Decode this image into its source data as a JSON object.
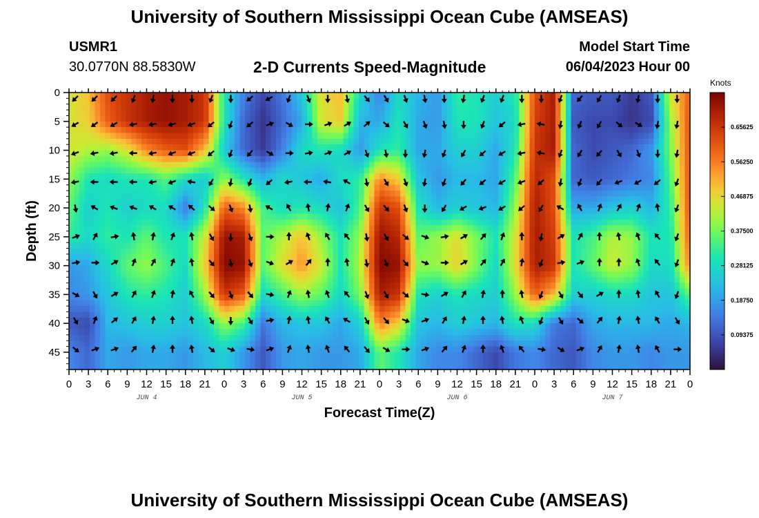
{
  "titles": {
    "main": "University of Southern Mississippi Ocean Cube (AMSEAS)",
    "footer": "University of Southern Mississippi Ocean Cube (AMSEAS)",
    "station_id": "USMR1",
    "station_coords": "30.0770N  88.5830W",
    "plot_title": "2-D Currents Speed-Magnitude",
    "model_start_label": "Model Start Time",
    "model_start_value": "06/04/2023 Hour 00"
  },
  "chart_data": {
    "type": "heatmap",
    "title": "2-D Currents Speed-Magnitude",
    "xlabel": "Forecast Time(Z)",
    "ylabel": "Depth (ft)",
    "x_tick_labels": [
      "0",
      "3",
      "6",
      "9",
      "12",
      "15",
      "18",
      "21",
      "0",
      "3",
      "6",
      "9",
      "12",
      "15",
      "18",
      "21",
      "0",
      "3",
      "6",
      "9",
      "12",
      "15",
      "18",
      "21",
      "0",
      "3",
      "6",
      "9",
      "12",
      "15",
      "18",
      "21",
      "0"
    ],
    "x_range_hours": [
      0,
      96
    ],
    "day_labels": [
      {
        "label": "JUN 4",
        "hour": 12
      },
      {
        "label": "JUN 5",
        "hour": 36
      },
      {
        "label": "JUN 6",
        "hour": 60
      },
      {
        "label": "JUN 7",
        "hour": 84
      }
    ],
    "y_ticks": [
      0,
      5,
      10,
      15,
      20,
      25,
      30,
      35,
      40,
      45
    ],
    "y_tick_labels": [
      "0",
      "5",
      "10",
      "15",
      "20",
      "25",
      "30",
      "35",
      "40",
      "45"
    ],
    "y_range": [
      0,
      48
    ],
    "y_inverted": true,
    "colorbar": {
      "unit": "Knots",
      "tick_labels": [
        "0.65625",
        "0.56250",
        "0.46875",
        "0.37500",
        "0.28125",
        "0.18750",
        "0.09375"
      ],
      "tick_values": [
        0.65625,
        0.5625,
        0.46875,
        0.375,
        0.28125,
        0.1875,
        0.09375
      ],
      "range": [
        0,
        0.75
      ]
    },
    "speed_field_estimate": {
      "note": "approximate speed-magnitude field (knots) sampled every 3 h x 5 ft",
      "hours": [
        0,
        3,
        6,
        9,
        12,
        15,
        18,
        21,
        24,
        27,
        30,
        33,
        36,
        39,
        42,
        45,
        48,
        51,
        54,
        57,
        60,
        63,
        66,
        69,
        72,
        75,
        78,
        81,
        84,
        87,
        90,
        93,
        96
      ],
      "depths": [
        0,
        5,
        10,
        15,
        20,
        25,
        30,
        35,
        40,
        45
      ],
      "rows": [
        [
          0.45,
          0.5,
          0.62,
          0.66,
          0.7,
          0.72,
          0.7,
          0.66,
          0.3,
          0.15,
          0.08,
          0.14,
          0.25,
          0.46,
          0.5,
          0.28,
          0.15,
          0.28,
          0.22,
          0.18,
          0.32,
          0.3,
          0.26,
          0.3,
          0.62,
          0.7,
          0.12,
          0.1,
          0.1,
          0.06,
          0.1,
          0.45,
          0.6
        ],
        [
          0.45,
          0.48,
          0.6,
          0.66,
          0.7,
          0.72,
          0.7,
          0.66,
          0.3,
          0.12,
          0.05,
          0.12,
          0.2,
          0.45,
          0.48,
          0.22,
          0.2,
          0.3,
          0.2,
          0.18,
          0.3,
          0.3,
          0.24,
          0.28,
          0.64,
          0.7,
          0.1,
          0.08,
          0.08,
          0.05,
          0.08,
          0.4,
          0.62
        ],
        [
          0.45,
          0.42,
          0.4,
          0.45,
          0.55,
          0.6,
          0.62,
          0.5,
          0.25,
          0.12,
          0.06,
          0.15,
          0.28,
          0.3,
          0.28,
          0.18,
          0.3,
          0.32,
          0.2,
          0.2,
          0.26,
          0.26,
          0.2,
          0.3,
          0.66,
          0.7,
          0.12,
          0.08,
          0.1,
          0.12,
          0.18,
          0.38,
          0.62
        ],
        [
          0.4,
          0.3,
          0.28,
          0.3,
          0.3,
          0.35,
          0.28,
          0.25,
          0.4,
          0.3,
          0.22,
          0.28,
          0.24,
          0.2,
          0.28,
          0.32,
          0.55,
          0.48,
          0.24,
          0.18,
          0.22,
          0.22,
          0.2,
          0.35,
          0.68,
          0.62,
          0.12,
          0.1,
          0.12,
          0.14,
          0.16,
          0.35,
          0.62
        ],
        [
          0.36,
          0.26,
          0.3,
          0.26,
          0.28,
          0.28,
          0.15,
          0.3,
          0.6,
          0.55,
          0.34,
          0.28,
          0.3,
          0.28,
          0.24,
          0.34,
          0.66,
          0.62,
          0.3,
          0.22,
          0.26,
          0.24,
          0.22,
          0.4,
          0.7,
          0.62,
          0.2,
          0.2,
          0.24,
          0.26,
          0.22,
          0.32,
          0.62
        ],
        [
          0.32,
          0.28,
          0.32,
          0.3,
          0.36,
          0.3,
          0.3,
          0.44,
          0.72,
          0.7,
          0.36,
          0.42,
          0.5,
          0.4,
          0.3,
          0.4,
          0.72,
          0.68,
          0.36,
          0.4,
          0.46,
          0.38,
          0.3,
          0.45,
          0.7,
          0.64,
          0.3,
          0.34,
          0.42,
          0.4,
          0.3,
          0.3,
          0.6
        ],
        [
          0.18,
          0.2,
          0.28,
          0.36,
          0.4,
          0.34,
          0.28,
          0.48,
          0.74,
          0.72,
          0.36,
          0.46,
          0.54,
          0.44,
          0.3,
          0.42,
          0.74,
          0.72,
          0.4,
          0.4,
          0.48,
          0.38,
          0.28,
          0.46,
          0.7,
          0.66,
          0.3,
          0.36,
          0.44,
          0.4,
          0.28,
          0.28,
          0.56
        ],
        [
          0.16,
          0.18,
          0.24,
          0.3,
          0.32,
          0.3,
          0.26,
          0.4,
          0.66,
          0.6,
          0.28,
          0.34,
          0.4,
          0.36,
          0.28,
          0.38,
          0.7,
          0.66,
          0.3,
          0.26,
          0.3,
          0.28,
          0.26,
          0.4,
          0.6,
          0.5,
          0.26,
          0.26,
          0.28,
          0.28,
          0.24,
          0.24,
          0.36
        ],
        [
          0.1,
          0.08,
          0.22,
          0.24,
          0.26,
          0.26,
          0.24,
          0.28,
          0.4,
          0.34,
          0.14,
          0.22,
          0.24,
          0.24,
          0.2,
          0.26,
          0.56,
          0.48,
          0.24,
          0.22,
          0.26,
          0.24,
          0.22,
          0.3,
          0.28,
          0.14,
          0.12,
          0.2,
          0.22,
          0.22,
          0.22,
          0.2,
          0.22
        ],
        [
          0.16,
          0.12,
          0.2,
          0.18,
          0.2,
          0.2,
          0.18,
          0.22,
          0.26,
          0.18,
          0.1,
          0.18,
          0.2,
          0.18,
          0.18,
          0.2,
          0.36,
          0.3,
          0.2,
          0.16,
          0.16,
          0.12,
          0.08,
          0.14,
          0.16,
          0.12,
          0.1,
          0.16,
          0.18,
          0.18,
          0.16,
          0.18,
          0.18
        ]
      ]
    },
    "current_vectors": {
      "note": "approximate arrow directions (degrees, 0 = up / toward surface, clockwise)",
      "hours": [
        1,
        4,
        7,
        10,
        13,
        16,
        19,
        22,
        25,
        28,
        31,
        34,
        37,
        40,
        43,
        46,
        49,
        52,
        55,
        58,
        61,
        64,
        67,
        70,
        73,
        76,
        79,
        82,
        85,
        88,
        91,
        94
      ],
      "depths": [
        1,
        5.5,
        10.5,
        15.5,
        20,
        25,
        29.5,
        35,
        39.5,
        44.5
      ],
      "rows": [
        [
          225,
          225,
          225,
          200,
          190,
          180,
          180,
          200,
          180,
          230,
          240,
          200,
          160,
          180,
          170,
          140,
          150,
          160,
          170,
          180,
          190,
          200,
          200,
          180,
          180,
          200,
          220,
          210,
          200,
          190,
          180,
          180
        ],
        [
          240,
          235,
          240,
          260,
          260,
          255,
          250,
          230,
          200,
          230,
          70,
          120,
          90,
          70,
          60,
          50,
          130,
          150,
          160,
          170,
          180,
          200,
          230,
          260,
          280,
          190,
          200,
          210,
          130,
          120,
          190,
          190
        ],
        [
          250,
          260,
          260,
          270,
          260,
          250,
          250,
          230,
          200,
          220,
          120,
          90,
          80,
          70,
          60,
          160,
          170,
          180,
          190,
          200,
          210,
          230,
          240,
          260,
          280,
          200,
          210,
          220,
          150,
          160,
          180,
          190
        ],
        [
          260,
          270,
          270,
          270,
          260,
          250,
          280,
          210,
          190,
          200,
          230,
          260,
          270,
          280,
          300,
          170,
          150,
          160,
          190,
          200,
          220,
          230,
          240,
          250,
          230,
          190,
          200,
          220,
          250,
          240,
          230,
          200
        ],
        [
          170,
          300,
          290,
          290,
          300,
          300,
          310,
          130,
          160,
          170,
          300,
          330,
          350,
          10,
          20,
          150,
          140,
          160,
          180,
          210,
          240,
          250,
          240,
          230,
          210,
          300,
          330,
          20,
          30,
          20,
          350,
          200
        ],
        [
          70,
          30,
          80,
          350,
          10,
          20,
          350,
          150,
          180,
          160,
          90,
          0,
          340,
          330,
          320,
          170,
          150,
          130,
          110,
          80,
          60,
          40,
          20,
          0,
          190,
          60,
          30,
          0,
          350,
          340,
          320,
          200
        ],
        [
          80,
          90,
          60,
          20,
          30,
          20,
          350,
          140,
          170,
          160,
          110,
          60,
          40,
          0,
          350,
          170,
          160,
          140,
          110,
          90,
          60,
          40,
          30,
          10,
          200,
          80,
          70,
          0,
          0,
          340,
          320,
          200
        ],
        [
          120,
          150,
          60,
          30,
          20,
          10,
          330,
          140,
          160,
          140,
          100,
          20,
          350,
          340,
          320,
          160,
          150,
          130,
          100,
          60,
          30,
          10,
          0,
          350,
          200,
          150,
          140,
          60,
          0,
          350,
          330,
          200
        ],
        [
          150,
          20,
          50,
          30,
          10,
          0,
          350,
          150,
          180,
          150,
          80,
          10,
          350,
          330,
          300,
          150,
          140,
          110,
          70,
          30,
          10,
          0,
          350,
          340,
          200,
          150,
          130,
          40,
          10,
          350,
          330,
          150
        ],
        [
          130,
          70,
          70,
          40,
          10,
          0,
          350,
          130,
          110,
          100,
          70,
          20,
          350,
          340,
          320,
          140,
          120,
          90,
          70,
          40,
          20,
          0,
          340,
          320,
          100,
          120,
          70,
          30,
          10,
          350,
          330,
          90
        ]
      ]
    }
  }
}
